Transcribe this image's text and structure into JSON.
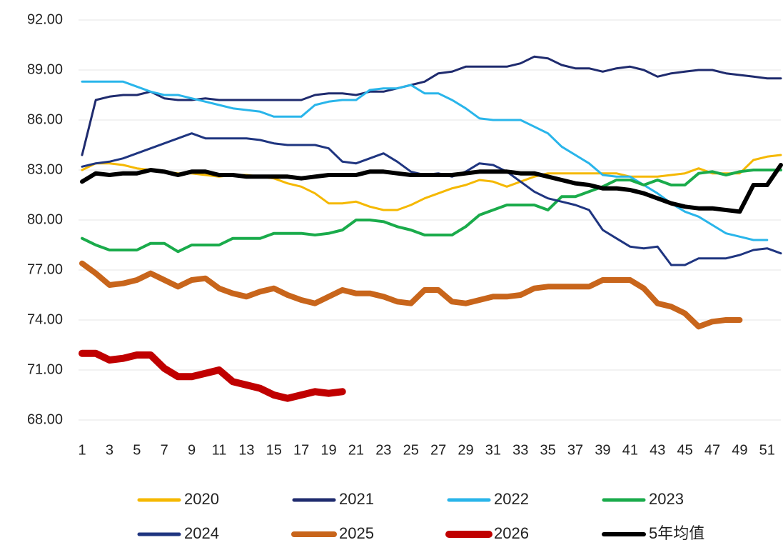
{
  "chart_data": {
    "type": "line",
    "x": [
      1,
      2,
      3,
      4,
      5,
      6,
      7,
      8,
      9,
      10,
      11,
      12,
      13,
      14,
      15,
      16,
      17,
      18,
      19,
      20,
      21,
      22,
      23,
      24,
      25,
      26,
      27,
      28,
      29,
      30,
      31,
      32,
      33,
      34,
      35,
      36,
      37,
      38,
      39,
      40,
      41,
      42,
      43,
      44,
      45,
      46,
      47,
      48,
      49,
      50,
      51,
      52
    ],
    "xlim": [
      1,
      52
    ],
    "xticks": [
      1,
      3,
      5,
      7,
      9,
      11,
      13,
      15,
      17,
      19,
      21,
      23,
      25,
      27,
      29,
      31,
      33,
      35,
      37,
      39,
      41,
      43,
      45,
      47,
      49,
      51
    ],
    "ylim": [
      68,
      92
    ],
    "yticks": [
      {
        "value": 68,
        "label": "68.00"
      },
      {
        "value": 71,
        "label": "71.00"
      },
      {
        "value": 74,
        "label": "74.00"
      },
      {
        "value": 77,
        "label": "77.00"
      },
      {
        "value": 80,
        "label": "80.00"
      },
      {
        "value": 83,
        "label": "83.00"
      },
      {
        "value": 86,
        "label": "86.00"
      },
      {
        "value": 89,
        "label": "89.00"
      },
      {
        "value": 92,
        "label": "92.00"
      }
    ],
    "grid": true,
    "legend": "bottom",
    "series": [
      {
        "name": "2020",
        "color": "#f5b800",
        "width": 3,
        "values": [
          83.0,
          83.4,
          83.4,
          83.3,
          83.1,
          83.0,
          82.9,
          82.8,
          82.8,
          82.7,
          82.6,
          82.7,
          82.7,
          82.6,
          82.5,
          82.2,
          82.0,
          81.6,
          81.0,
          81.0,
          81.1,
          80.8,
          80.6,
          80.6,
          80.9,
          81.3,
          81.6,
          81.9,
          82.1,
          82.4,
          82.3,
          82.0,
          82.3,
          82.6,
          82.8,
          82.8,
          82.8,
          82.8,
          82.8,
          82.8,
          82.6,
          82.6,
          82.6,
          82.7,
          82.8,
          83.1,
          82.8,
          82.8,
          82.8,
          83.6,
          83.8,
          83.9
        ]
      },
      {
        "name": "2021",
        "color": "#1f2b6e",
        "width": 3,
        "values": [
          83.9,
          87.2,
          87.4,
          87.5,
          87.5,
          87.7,
          87.3,
          87.2,
          87.2,
          87.3,
          87.2,
          87.2,
          87.2,
          87.2,
          87.2,
          87.2,
          87.2,
          87.5,
          87.6,
          87.6,
          87.5,
          87.7,
          87.7,
          87.9,
          88.1,
          88.3,
          88.8,
          88.9,
          89.2,
          89.2,
          89.2,
          89.2,
          89.4,
          89.8,
          89.7,
          89.3,
          89.1,
          89.1,
          88.9,
          89.1,
          89.2,
          89.0,
          88.6,
          88.8,
          88.9,
          89.0,
          89.0,
          88.8,
          88.7,
          88.6,
          88.5,
          88.5
        ]
      },
      {
        "name": "2022",
        "color": "#29b5ea",
        "width": 3,
        "values": [
          88.3,
          88.3,
          88.3,
          88.3,
          88.0,
          87.7,
          87.5,
          87.5,
          87.3,
          87.1,
          86.9,
          86.7,
          86.6,
          86.5,
          86.2,
          86.2,
          86.2,
          86.9,
          87.1,
          87.2,
          87.2,
          87.8,
          87.9,
          87.9,
          88.1,
          87.6,
          87.6,
          87.2,
          86.7,
          86.1,
          86.0,
          86.0,
          86.0,
          85.6,
          85.2,
          84.4,
          83.9,
          83.4,
          82.7,
          82.6,
          82.6,
          82.1,
          81.6,
          81.0,
          80.5,
          80.2,
          79.7,
          79.2,
          79.0,
          78.8,
          78.8,
          null
        ]
      },
      {
        "name": "2023",
        "color": "#1aab4b",
        "width": 4,
        "values": [
          78.9,
          78.5,
          78.2,
          78.2,
          78.2,
          78.6,
          78.6,
          78.1,
          78.5,
          78.5,
          78.5,
          78.9,
          78.9,
          78.9,
          79.2,
          79.2,
          79.2,
          79.1,
          79.2,
          79.4,
          80.0,
          80.0,
          79.9,
          79.6,
          79.4,
          79.1,
          79.1,
          79.1,
          79.6,
          80.3,
          80.6,
          80.9,
          80.9,
          80.9,
          80.6,
          81.4,
          81.4,
          81.7,
          82.0,
          82.4,
          82.4,
          82.1,
          82.4,
          82.1,
          82.1,
          82.8,
          82.9,
          82.7,
          82.9,
          83.0,
          83.0,
          83.0
        ]
      },
      {
        "name": "2024",
        "color": "#1f3580",
        "width": 3,
        "values": [
          83.2,
          83.4,
          83.5,
          83.7,
          84.0,
          84.3,
          84.6,
          84.9,
          85.2,
          84.9,
          84.9,
          84.9,
          84.9,
          84.8,
          84.6,
          84.5,
          84.5,
          84.5,
          84.3,
          83.5,
          83.4,
          83.7,
          84.0,
          83.5,
          82.9,
          82.7,
          82.8,
          82.6,
          82.9,
          83.4,
          83.3,
          82.9,
          82.3,
          81.7,
          81.3,
          81.1,
          80.9,
          80.6,
          79.4,
          78.9,
          78.4,
          78.3,
          78.4,
          77.3,
          77.3,
          77.7,
          77.7,
          77.7,
          77.9,
          78.2,
          78.3,
          78.0
        ]
      },
      {
        "name": "2025",
        "color": "#c8651b",
        "width": 8,
        "values": [
          77.4,
          76.8,
          76.1,
          76.2,
          76.4,
          76.8,
          76.4,
          76.0,
          76.4,
          76.5,
          75.9,
          75.6,
          75.4,
          75.7,
          75.9,
          75.5,
          75.2,
          75.0,
          75.4,
          75.8,
          75.6,
          75.6,
          75.4,
          75.1,
          75.0,
          75.8,
          75.8,
          75.1,
          75.0,
          75.2,
          75.4,
          75.4,
          75.5,
          75.9,
          76.0,
          76.0,
          76.0,
          76.0,
          76.4,
          76.4,
          76.4,
          75.9,
          75.0,
          74.8,
          74.4,
          73.6,
          73.9,
          74.0,
          74.0,
          null,
          null,
          null
        ]
      },
      {
        "name": "2026",
        "color": "#c00000",
        "width": 10,
        "values": [
          72.0,
          72.0,
          71.6,
          71.7,
          71.9,
          71.9,
          71.1,
          70.6,
          70.6,
          70.8,
          71.0,
          70.3,
          70.1,
          69.9,
          69.5,
          69.3,
          69.5,
          69.7,
          69.6,
          69.7,
          null,
          null,
          null,
          null,
          null,
          null,
          null,
          null,
          null,
          null,
          null,
          null,
          null,
          null,
          null,
          null,
          null,
          null,
          null,
          null,
          null,
          null,
          null,
          null,
          null,
          null,
          null,
          null,
          null,
          null,
          null,
          null
        ]
      },
      {
        "name": "5年均值",
        "color": "#000000",
        "width": 6,
        "values": [
          82.3,
          82.8,
          82.7,
          82.8,
          82.8,
          83.0,
          82.9,
          82.7,
          82.9,
          82.9,
          82.7,
          82.7,
          82.6,
          82.6,
          82.6,
          82.6,
          82.5,
          82.6,
          82.7,
          82.7,
          82.7,
          82.9,
          82.9,
          82.8,
          82.7,
          82.7,
          82.7,
          82.7,
          82.8,
          82.9,
          82.9,
          82.9,
          82.8,
          82.8,
          82.6,
          82.4,
          82.2,
          82.1,
          81.9,
          81.9,
          81.8,
          81.6,
          81.3,
          81.0,
          80.8,
          80.7,
          80.7,
          80.6,
          80.5,
          82.1,
          82.1,
          83.3
        ]
      }
    ]
  }
}
